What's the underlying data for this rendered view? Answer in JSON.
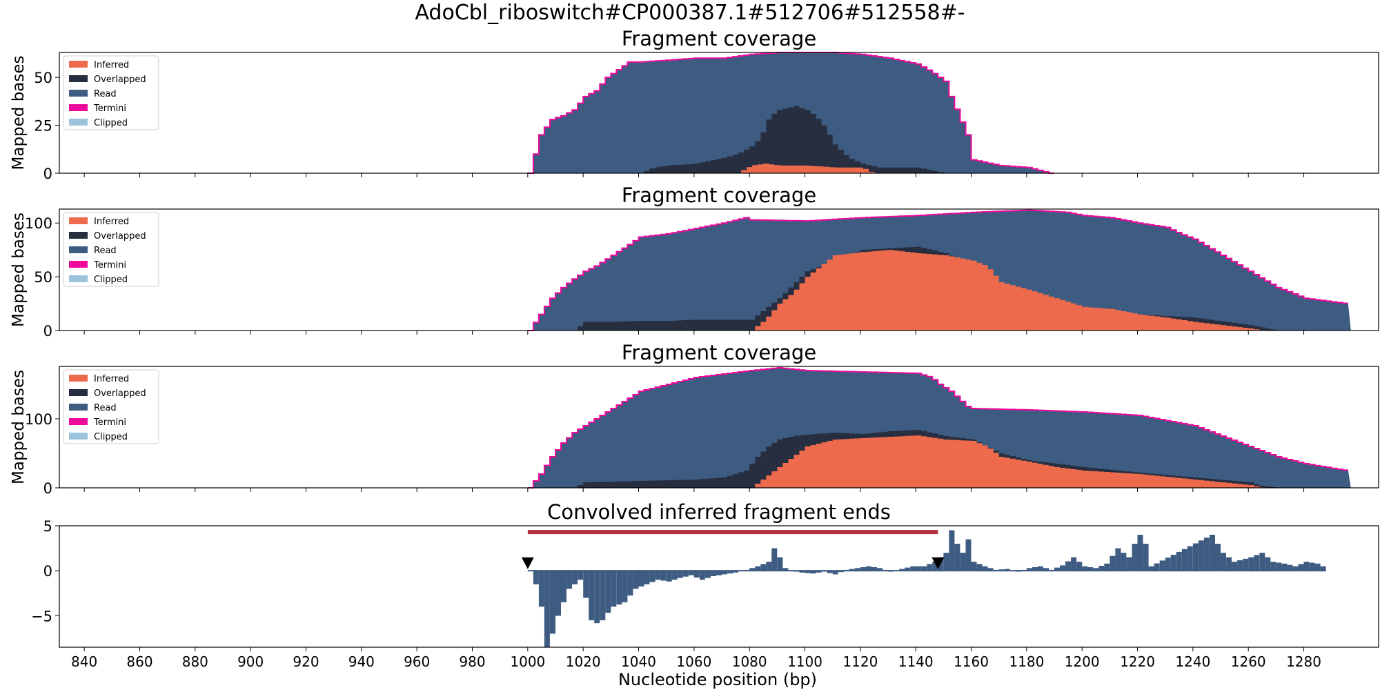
{
  "figure": {
    "suptitle": "AdoCbl_riboswitch#CP000387.1#512706#512558#-",
    "xlabel": "Nucleotide position (bp)"
  },
  "colors": {
    "Inferred": "#ee6a4d",
    "Overlapped": "#262e40",
    "Read": "#3e5b82",
    "Termini": "#ee0a9b",
    "Clipped": "#9cc3dc",
    "ends": "#3e5b82",
    "bar": "#b5303f",
    "marker": "#000000"
  },
  "chart_data": [
    {
      "type": "area",
      "title": "Fragment coverage",
      "ylabel": "Mapped bases",
      "xlim": [
        831,
        1307
      ],
      "ylim": [
        0,
        63
      ],
      "yticks": [
        0,
        25,
        50
      ],
      "legend": {
        "position": "top-left",
        "entries": [
          "Inferred",
          "Overlapped",
          "Read",
          "Termini",
          "Clipped"
        ]
      },
      "series": [
        {
          "name": "Read",
          "x": [
            1000,
            1004,
            1008,
            1012,
            1016,
            1020,
            1024,
            1028,
            1032,
            1036,
            1040,
            1050,
            1060,
            1070,
            1080,
            1090,
            1100,
            1110,
            1120,
            1130,
            1140,
            1145,
            1150,
            1152,
            1155,
            1158,
            1160,
            1170,
            1180,
            1188
          ],
          "values": [
            0,
            20,
            28,
            30,
            33,
            40,
            43,
            50,
            54,
            58,
            58,
            59,
            60,
            60,
            62,
            63,
            63,
            63,
            62,
            60,
            57,
            53,
            48,
            40,
            30,
            20,
            7,
            4,
            3,
            0
          ]
        },
        {
          "name": "Overlapped",
          "x": [
            1040,
            1045,
            1050,
            1060,
            1070,
            1075,
            1080,
            1083,
            1086,
            1088,
            1090,
            1093,
            1096,
            1100,
            1103,
            1106,
            1110,
            1115,
            1120,
            1126,
            1130,
            1140,
            1150
          ],
          "values": [
            0,
            3,
            4,
            5,
            8,
            10,
            14,
            18,
            28,
            31,
            33,
            34,
            35,
            33,
            30,
            25,
            15,
            8,
            5,
            3,
            3,
            3,
            0
          ]
        },
        {
          "name": "Inferred",
          "x": [
            1075,
            1080,
            1085,
            1090,
            1100,
            1110,
            1120,
            1124
          ],
          "values": [
            0,
            4,
            5,
            4,
            4,
            3,
            3,
            0
          ]
        }
      ]
    },
    {
      "type": "area",
      "title": "Fragment coverage",
      "ylabel": "Mapped bases",
      "xlim": [
        831,
        1307
      ],
      "ylim": [
        0,
        113
      ],
      "yticks": [
        0,
        50,
        100
      ],
      "legend": {
        "position": "top-left",
        "entries": [
          "Inferred",
          "Overlapped",
          "Read",
          "Termini",
          "Clipped"
        ]
      },
      "series": [
        {
          "name": "Read",
          "x": [
            1000,
            1004,
            1008,
            1012,
            1016,
            1020,
            1024,
            1030,
            1036,
            1040,
            1050,
            1060,
            1070,
            1078,
            1080,
            1100,
            1120,
            1140,
            1160,
            1180,
            1194,
            1200,
            1210,
            1220,
            1230,
            1235,
            1240,
            1250,
            1260,
            1270,
            1280,
            1295
          ],
          "values": [
            0,
            15,
            30,
            40,
            48,
            55,
            60,
            70,
            80,
            87,
            90,
            95,
            100,
            105,
            103,
            102,
            105,
            107,
            110,
            112,
            110,
            107,
            105,
            100,
            96,
            90,
            85,
            70,
            55,
            40,
            30,
            25
          ]
        },
        {
          "name": "Overlapped",
          "x": [
            1016,
            1020,
            1030,
            1040,
            1050,
            1060,
            1070,
            1080,
            1090,
            1100,
            1120,
            1140,
            1150,
            1160,
            1170,
            1180,
            1190,
            1200,
            1220,
            1240,
            1260,
            1264,
            1270
          ],
          "values": [
            0,
            8,
            8,
            9,
            9,
            10,
            10,
            10,
            30,
            55,
            75,
            78,
            72,
            60,
            40,
            30,
            22,
            20,
            15,
            12,
            5,
            3,
            0
          ]
        },
        {
          "name": "Inferred",
          "x": [
            1080,
            1085,
            1090,
            1095,
            1100,
            1110,
            1120,
            1130,
            1140,
            1150,
            1160,
            1165,
            1170,
            1180,
            1190,
            1200,
            1210,
            1220,
            1230,
            1240,
            1250,
            1260,
            1265
          ],
          "values": [
            0,
            10,
            25,
            35,
            50,
            70,
            73,
            75,
            72,
            70,
            65,
            60,
            45,
            38,
            30,
            22,
            20,
            15,
            12,
            8,
            5,
            2,
            0
          ]
        }
      ]
    },
    {
      "type": "area",
      "title": "Fragment coverage",
      "ylabel": "Mapped bases",
      "xlim": [
        831,
        1307
      ],
      "ylim": [
        0,
        176
      ],
      "yticks": [
        0,
        100
      ],
      "legend": {
        "position": "top-left",
        "entries": [
          "Inferred",
          "Overlapped",
          "Read",
          "Termini",
          "Clipped"
        ]
      },
      "series": [
        {
          "name": "Read",
          "x": [
            1000,
            1004,
            1008,
            1012,
            1016,
            1020,
            1024,
            1030,
            1036,
            1040,
            1050,
            1060,
            1070,
            1080,
            1090,
            1100,
            1120,
            1140,
            1145,
            1148,
            1152,
            1158,
            1160,
            1180,
            1200,
            1220,
            1240,
            1250,
            1260,
            1270,
            1280,
            1295
          ],
          "values": [
            0,
            20,
            45,
            65,
            80,
            90,
            100,
            115,
            130,
            140,
            150,
            160,
            165,
            170,
            174,
            170,
            168,
            166,
            160,
            150,
            140,
            118,
            115,
            113,
            110,
            105,
            90,
            75,
            60,
            45,
            35,
            25
          ]
        },
        {
          "name": "Overlapped",
          "x": [
            1016,
            1020,
            1040,
            1060,
            1070,
            1078,
            1082,
            1086,
            1090,
            1095,
            1100,
            1110,
            1120,
            1130,
            1140,
            1150,
            1160,
            1170,
            1180,
            1200,
            1220,
            1240,
            1260,
            1264,
            1270
          ],
          "values": [
            0,
            8,
            10,
            12,
            15,
            25,
            45,
            60,
            70,
            75,
            77,
            80,
            78,
            82,
            84,
            75,
            70,
            50,
            40,
            30,
            22,
            15,
            8,
            3,
            0
          ]
        },
        {
          "name": "Inferred",
          "x": [
            1080,
            1085,
            1090,
            1095,
            1100,
            1110,
            1120,
            1130,
            1140,
            1150,
            1160,
            1165,
            1170,
            1180,
            1190,
            1200,
            1220,
            1240,
            1260,
            1265
          ],
          "values": [
            0,
            15,
            30,
            45,
            60,
            70,
            72,
            74,
            76,
            70,
            68,
            60,
            45,
            38,
            30,
            25,
            20,
            12,
            4,
            0
          ]
        }
      ]
    },
    {
      "type": "bar",
      "title": "Convolved inferred fragment ends",
      "ylabel": "",
      "xlim": [
        831,
        1307
      ],
      "ylim": [
        -8.5,
        5
      ],
      "yticks": [
        -5,
        0,
        5
      ],
      "series": [
        {
          "name": "",
          "x": [
            1000,
            1002,
            1004,
            1006,
            1008,
            1010,
            1014,
            1018,
            1020,
            1022,
            1025,
            1027,
            1030,
            1034,
            1038,
            1042,
            1046,
            1050,
            1054,
            1058,
            1062,
            1066,
            1070,
            1074,
            1078,
            1082,
            1086,
            1088,
            1090,
            1092,
            1094,
            1098,
            1102,
            1106,
            1110,
            1114,
            1118,
            1122,
            1126,
            1130,
            1134,
            1138,
            1142,
            1146,
            1150,
            1152,
            1154,
            1156,
            1158,
            1160,
            1164,
            1168,
            1172,
            1176,
            1180,
            1184,
            1188,
            1192,
            1196,
            1200,
            1204,
            1208,
            1212,
            1216,
            1218,
            1220,
            1222,
            1224,
            1246,
            1248,
            1250,
            1254,
            1260,
            1264,
            1268,
            1272,
            1276,
            1280,
            1284,
            1288
          ],
          "values": [
            0,
            -1.5,
            -4,
            -8.5,
            -7,
            -5,
            -2,
            -1,
            -3,
            -5.5,
            -6,
            -5,
            -4,
            -3.5,
            -2,
            -1.5,
            -1,
            -1.2,
            -0.8,
            -0.5,
            -1,
            -0.6,
            -0.4,
            -0.2,
            0.1,
            0.5,
            1,
            2.5,
            1.5,
            0.3,
            0,
            -0.2,
            -0.3,
            -0.1,
            -0.4,
            0.1,
            0.3,
            0.5,
            0.3,
            -0.1,
            0.2,
            0.5,
            0.5,
            1,
            2,
            4.5,
            3,
            2,
            3.5,
            1,
            0.5,
            0.1,
            0.2,
            -0.1,
            0.3,
            0.5,
            0.1,
            0.6,
            1.5,
            0.5,
            0.3,
            0.8,
            2.5,
            1.5,
            3,
            4,
            3,
            0.5,
            4,
            3,
            2,
            1,
            1.5,
            2,
            1,
            0.8,
            0.5,
            1,
            0.8,
            0.2
          ]
        }
      ],
      "segment": {
        "x": [
          1000,
          1148
        ],
        "y": 4.3
      },
      "markers": [
        {
          "x": 1000,
          "y": 0.8
        },
        {
          "x": 1148,
          "y": 0.8
        }
      ],
      "xticks": [
        840,
        860,
        880,
        900,
        920,
        940,
        960,
        980,
        1000,
        1020,
        1040,
        1060,
        1080,
        1100,
        1120,
        1140,
        1160,
        1180,
        1200,
        1220,
        1240,
        1260,
        1280
      ]
    }
  ]
}
